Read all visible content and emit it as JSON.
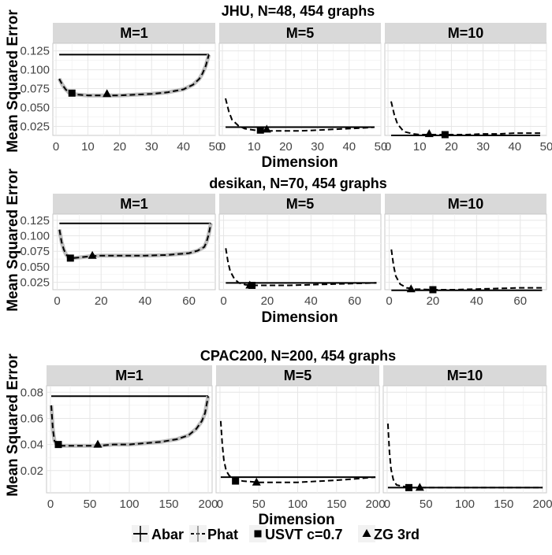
{
  "legend": {
    "items": [
      {
        "label": "Abar",
        "key": "abar"
      },
      {
        "label": "Phat",
        "key": "phat"
      },
      {
        "label": "USVT c=0.7",
        "key": "usvt"
      },
      {
        "label": "ZG 3rd",
        "key": "zg"
      }
    ]
  },
  "chart_data": [
    {
      "type": "line",
      "title": "JHU, N=48, 454 graphs",
      "xlabel": "Dimension",
      "ylabel": "Mean Squared Error",
      "xlim": [
        -1,
        50
      ],
      "ylim": [
        0.013,
        0.135
      ],
      "xticks": [
        0,
        10,
        20,
        30,
        40,
        50
      ],
      "yticks": [
        0.025,
        0.05,
        0.075,
        0.1,
        0.125
      ],
      "ytick_labels": [
        "0.025",
        "0.050",
        "0.075",
        "0.100",
        "0.125"
      ],
      "grid": true,
      "panels": [
        {
          "strip": "M=1",
          "abar": 0.12,
          "phat": {
            "x": [
              1,
              2,
              3,
              4,
              5,
              7,
              10,
              15,
              20,
              25,
              30,
              35,
              40,
              43,
              45,
              46,
              47,
              48
            ],
            "y": [
              0.088,
              0.08,
              0.074,
              0.07,
              0.068,
              0.067,
              0.066,
              0.066,
              0.066,
              0.067,
              0.068,
              0.07,
              0.074,
              0.08,
              0.088,
              0.095,
              0.105,
              0.12
            ]
          },
          "usvt": {
            "x": 5,
            "y": 0.069
          },
          "zg": {
            "x": 16,
            "y": 0.068
          }
        },
        {
          "strip": "M=5",
          "abar": 0.024,
          "phat": {
            "x": [
              1,
              2,
              3,
              5,
              7,
              10,
              15,
              20,
              25,
              30,
              35,
              40,
              45,
              48
            ],
            "y": [
              0.062,
              0.045,
              0.034,
              0.026,
              0.022,
              0.02,
              0.019,
              0.019,
              0.019,
              0.02,
              0.021,
              0.022,
              0.023,
              0.024
            ]
          },
          "usvt": {
            "x": 12,
            "y": 0.02
          },
          "zg": {
            "x": 14,
            "y": 0.021
          }
        },
        {
          "strip": "M=10",
          "abar": 0.013,
          "phat": {
            "x": [
              1,
              2,
              3,
              5,
              8,
              10,
              15,
              20,
              25,
              30,
              35,
              40,
              45,
              48
            ],
            "y": [
              0.058,
              0.04,
              0.028,
              0.018,
              0.015,
              0.014,
              0.014,
              0.014,
              0.014,
              0.015,
              0.015,
              0.016,
              0.016,
              0.016
            ]
          },
          "usvt": {
            "x": 18,
            "y": 0.014
          },
          "zg": {
            "x": 13,
            "y": 0.015
          }
        }
      ]
    },
    {
      "type": "line",
      "title": "desikan, N=70, 454 graphs",
      "xlabel": "Dimension",
      "ylabel": "Mean Squared Error",
      "xlim": [
        -2,
        72
      ],
      "ylim": [
        0.013,
        0.135
      ],
      "xticks": [
        0,
        20,
        40,
        60
      ],
      "yticks": [
        0.025,
        0.05,
        0.075,
        0.1,
        0.125
      ],
      "ytick_labels": [
        "0.025",
        "0.050",
        "0.075",
        "0.100",
        "0.125"
      ],
      "grid": true,
      "panels": [
        {
          "strip": "M=1",
          "abar": 0.12,
          "phat": {
            "x": [
              1,
              2,
              3,
              4,
              5,
              7,
              10,
              15,
              20,
              30,
              40,
              50,
              60,
              64,
              67,
              68,
              69,
              70
            ],
            "y": [
              0.11,
              0.09,
              0.078,
              0.07,
              0.066,
              0.064,
              0.065,
              0.067,
              0.068,
              0.068,
              0.068,
              0.069,
              0.072,
              0.076,
              0.082,
              0.09,
              0.102,
              0.12
            ]
          },
          "usvt": {
            "x": 6,
            "y": 0.064
          },
          "zg": {
            "x": 16,
            "y": 0.068
          }
        },
        {
          "strip": "M=5",
          "abar": 0.024,
          "phat": {
            "x": [
              1,
              2,
              3,
              5,
              7,
              10,
              15,
              20,
              30,
              40,
              50,
              60,
              70
            ],
            "y": [
              0.08,
              0.058,
              0.043,
              0.03,
              0.024,
              0.021,
              0.02,
              0.02,
              0.02,
              0.021,
              0.022,
              0.023,
              0.024
            ]
          },
          "usvt": {
            "x": 13,
            "y": 0.02
          },
          "zg": {
            "x": 12,
            "y": 0.02
          }
        },
        {
          "strip": "M=10",
          "abar": 0.012,
          "phat": {
            "x": [
              1,
              2,
              3,
              5,
              8,
              12,
              20,
              30,
              40,
              50,
              60,
              70
            ],
            "y": [
              0.078,
              0.052,
              0.035,
              0.022,
              0.016,
              0.014,
              0.013,
              0.013,
              0.014,
              0.015,
              0.016,
              0.016
            ]
          },
          "usvt": {
            "x": 20,
            "y": 0.013
          },
          "zg": {
            "x": 10,
            "y": 0.014
          }
        }
      ]
    },
    {
      "type": "line",
      "title": "CPAC200, N=200, 454 graphs",
      "xlabel": "Dimension",
      "ylabel": "Mean Squared Error",
      "xlim": [
        -5,
        205
      ],
      "ylim": [
        0.003,
        0.085
      ],
      "xticks": [
        0,
        50,
        100,
        150,
        200
      ],
      "yticks": [
        0.02,
        0.04,
        0.06,
        0.08
      ],
      "ytick_labels": [
        "0.02",
        "0.04",
        "0.06",
        "0.08"
      ],
      "grid": true,
      "panels": [
        {
          "strip": "M=1",
          "abar": 0.077,
          "phat": {
            "x": [
              1,
              3,
              5,
              8,
              12,
              20,
              40,
              60,
              80,
              100,
              120,
              140,
              160,
              175,
              185,
              192,
              196,
              200
            ],
            "y": [
              0.07,
              0.052,
              0.043,
              0.04,
              0.039,
              0.039,
              0.039,
              0.039,
              0.04,
              0.04,
              0.041,
              0.042,
              0.044,
              0.047,
              0.052,
              0.058,
              0.064,
              0.077
            ]
          },
          "usvt": {
            "x": 10,
            "y": 0.04
          },
          "zg": {
            "x": 60,
            "y": 0.04
          }
        },
        {
          "strip": "M=5",
          "abar": 0.015,
          "phat": {
            "x": [
              1,
              3,
              5,
              8,
              12,
              20,
              30,
              50,
              80,
              100,
              130,
              160,
              180,
              200
            ],
            "y": [
              0.058,
              0.04,
              0.028,
              0.02,
              0.016,
              0.013,
              0.012,
              0.011,
              0.011,
              0.011,
              0.012,
              0.013,
              0.014,
              0.015
            ]
          },
          "usvt": {
            "x": 20,
            "y": 0.012
          },
          "zg": {
            "x": 47,
            "y": 0.011
          }
        },
        {
          "strip": "M=10",
          "abar": 0.007,
          "phat": {
            "x": [
              1,
              3,
              5,
              8,
              12,
              20,
              30,
              50,
              100,
              150,
              200
            ],
            "y": [
              0.056,
              0.034,
              0.021,
              0.013,
              0.009,
              0.008,
              0.007,
              0.007,
              0.007,
              0.007,
              0.007
            ]
          },
          "usvt": {
            "x": 28,
            "y": 0.007
          },
          "zg": {
            "x": 42,
            "y": 0.007
          }
        }
      ]
    }
  ]
}
